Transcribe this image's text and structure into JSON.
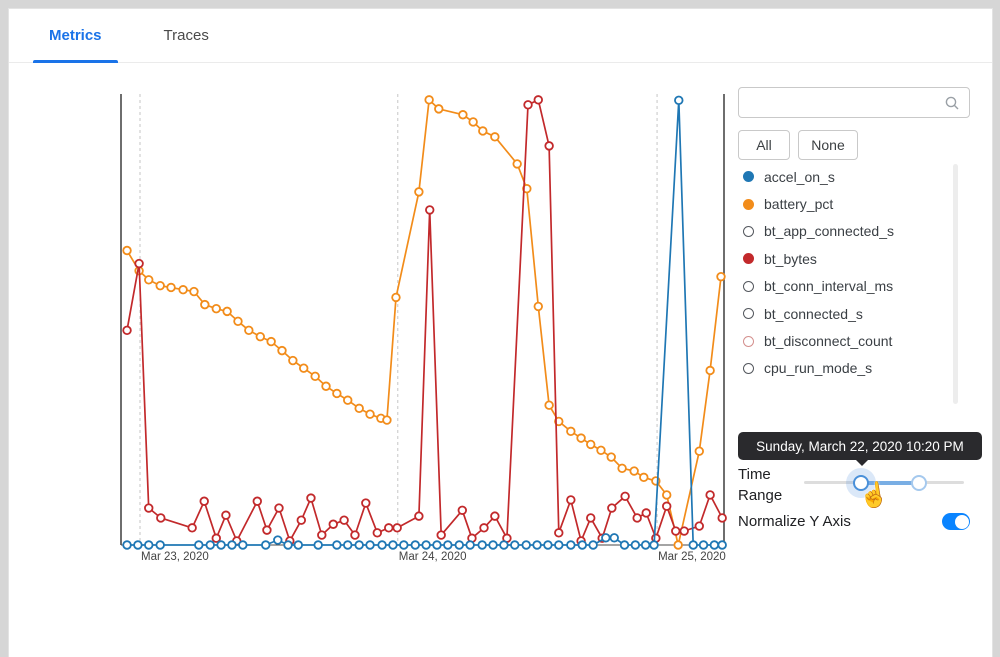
{
  "tabs": {
    "metrics": "Metrics",
    "traces": "Traces"
  },
  "panel": {
    "search": {
      "placeholder": "",
      "value": ""
    },
    "buttons": {
      "all": "All",
      "none": "None"
    },
    "legend": [
      {
        "label": "accel_on_s",
        "color": "#1f77b4",
        "filled": true
      },
      {
        "label": "battery_pct",
        "color": "#f28c1a",
        "filled": true
      },
      {
        "label": "bt_app_connected_s",
        "color": "#54585e",
        "filled": false
      },
      {
        "label": "bt_bytes",
        "color": "#c2292b",
        "filled": true
      },
      {
        "label": "bt_conn_interval_ms",
        "color": "#54585e",
        "filled": false
      },
      {
        "label": "bt_connected_s",
        "color": "#54585e",
        "filled": false
      },
      {
        "label": "bt_disconnect_count",
        "color": "#d4908e",
        "filled": false
      },
      {
        "label": "cpu_run_mode_s",
        "color": "#54585e",
        "filled": false
      }
    ],
    "tooltip_text": "Sunday, March 22, 2020 10:20 PM",
    "time_range_label": "Time Range",
    "normalize_label": "Normalize Y Axis",
    "normalize_on": true,
    "slider": {
      "start_pct": 35.6,
      "end_pct": 71.9
    }
  },
  "chart_data": {
    "type": "line",
    "title": "",
    "xlabel": "",
    "ylabel": "",
    "y_axis": {
      "normalized": true,
      "range": [
        0,
        100
      ],
      "ticks_visible": false
    },
    "x_axis": {
      "tick_labels": [
        "Mar 23, 2020",
        "Mar 24, 2020",
        "Mar 25, 2020"
      ],
      "gridline_x_pct": [
        3.15,
        45.9,
        88.9
      ]
    },
    "legend_position": "right-panel",
    "series": [
      {
        "name": "battery_pct",
        "color": "#f28c1a",
        "points": [
          [
            1.0,
            65.3
          ],
          [
            3.0,
            60.8
          ],
          [
            4.6,
            58.8
          ],
          [
            6.5,
            57.5
          ],
          [
            8.3,
            57.1
          ],
          [
            10.3,
            56.6
          ],
          [
            12.1,
            56.2
          ],
          [
            13.9,
            53.3
          ],
          [
            15.8,
            52.4
          ],
          [
            17.6,
            51.8
          ],
          [
            19.4,
            49.6
          ],
          [
            21.2,
            47.6
          ],
          [
            23.1,
            46.2
          ],
          [
            24.9,
            45.1
          ],
          [
            26.7,
            43.1
          ],
          [
            28.5,
            40.9
          ],
          [
            30.3,
            39.2
          ],
          [
            32.2,
            37.4
          ],
          [
            34.0,
            35.2
          ],
          [
            35.8,
            33.6
          ],
          [
            37.6,
            32.1
          ],
          [
            39.5,
            30.3
          ],
          [
            41.3,
            29.0
          ],
          [
            43.1,
            28.1
          ],
          [
            44.1,
            27.7
          ],
          [
            45.6,
            54.9
          ],
          [
            49.4,
            78.3
          ],
          [
            51.1,
            98.7
          ],
          [
            52.7,
            96.7
          ],
          [
            56.7,
            95.4
          ],
          [
            58.4,
            93.8
          ],
          [
            60.0,
            91.8
          ],
          [
            62.0,
            90.5
          ],
          [
            65.7,
            84.5
          ],
          [
            67.3,
            79.0
          ],
          [
            69.2,
            52.9
          ],
          [
            71.0,
            31.0
          ],
          [
            72.6,
            27.4
          ],
          [
            74.6,
            25.2
          ],
          [
            76.3,
            23.7
          ],
          [
            77.9,
            22.3
          ],
          [
            79.6,
            21.0
          ],
          [
            81.3,
            19.5
          ],
          [
            83.1,
            17.0
          ],
          [
            85.1,
            16.4
          ],
          [
            86.7,
            15.0
          ],
          [
            88.7,
            14.2
          ],
          [
            90.5,
            11.1
          ],
          [
            92.4,
            0
          ],
          [
            95.9,
            20.8
          ],
          [
            97.7,
            38.7
          ],
          [
            99.5,
            59.5
          ]
        ]
      },
      {
        "name": "bt_bytes",
        "color": "#c2292b",
        "points": [
          [
            1.0,
            47.6
          ],
          [
            3.0,
            62.4
          ],
          [
            4.6,
            8.2
          ],
          [
            6.6,
            6.0
          ],
          [
            11.8,
            3.8
          ],
          [
            13.8,
            9.7
          ],
          [
            15.8,
            1.5
          ],
          [
            17.4,
            6.6
          ],
          [
            19.2,
            0.9
          ],
          [
            22.6,
            9.7
          ],
          [
            24.2,
            3.3
          ],
          [
            26.2,
            8.2
          ],
          [
            28.0,
            0.9
          ],
          [
            29.9,
            5.5
          ],
          [
            31.5,
            10.4
          ],
          [
            33.3,
            2.2
          ],
          [
            35.2,
            4.6
          ],
          [
            37.0,
            5.5
          ],
          [
            38.8,
            2.2
          ],
          [
            40.6,
            9.3
          ],
          [
            42.5,
            2.7
          ],
          [
            44.4,
            3.8
          ],
          [
            45.8,
            3.8
          ],
          [
            49.4,
            6.4
          ],
          [
            51.2,
            74.3
          ],
          [
            53.1,
            2.2
          ],
          [
            56.6,
            7.7
          ],
          [
            58.2,
            1.5
          ],
          [
            60.2,
            3.8
          ],
          [
            62.0,
            6.4
          ],
          [
            64.0,
            1.5
          ],
          [
            67.5,
            97.6
          ],
          [
            69.2,
            98.7
          ],
          [
            71.0,
            88.5
          ],
          [
            72.6,
            2.7
          ],
          [
            74.6,
            10.0
          ],
          [
            76.3,
            0.9
          ],
          [
            77.9,
            6.0
          ],
          [
            79.8,
            1.5
          ],
          [
            81.4,
            8.2
          ],
          [
            83.6,
            10.8
          ],
          [
            85.6,
            6.0
          ],
          [
            87.1,
            7.1
          ],
          [
            88.7,
            1.5
          ],
          [
            90.5,
            8.6
          ],
          [
            92.0,
            3.1
          ],
          [
            93.4,
            3.1
          ],
          [
            95.9,
            4.2
          ],
          [
            97.7,
            11.1
          ],
          [
            99.7,
            6.0
          ]
        ]
      },
      {
        "name": "accel_on_s",
        "color": "#1f77b4",
        "points": [
          [
            1.0,
            0
          ],
          [
            2.8,
            0
          ],
          [
            4.6,
            0
          ],
          [
            6.5,
            0
          ],
          [
            12.9,
            0
          ],
          [
            14.8,
            0
          ],
          [
            16.6,
            0
          ],
          [
            18.4,
            0
          ],
          [
            20.2,
            0
          ],
          [
            24.0,
            0
          ],
          [
            26.0,
            1.1
          ],
          [
            27.7,
            0
          ],
          [
            29.4,
            0
          ],
          [
            32.7,
            0
          ],
          [
            35.8,
            0
          ],
          [
            37.6,
            0
          ],
          [
            39.5,
            0
          ],
          [
            41.3,
            0
          ],
          [
            43.3,
            0
          ],
          [
            45.1,
            0
          ],
          [
            46.9,
            0
          ],
          [
            48.8,
            0
          ],
          [
            50.6,
            0
          ],
          [
            52.4,
            0
          ],
          [
            54.2,
            0
          ],
          [
            56.1,
            0
          ],
          [
            57.9,
            0
          ],
          [
            59.9,
            0
          ],
          [
            61.7,
            0
          ],
          [
            63.5,
            0
          ],
          [
            65.3,
            0
          ],
          [
            67.2,
            0
          ],
          [
            69.0,
            0
          ],
          [
            70.8,
            0
          ],
          [
            72.6,
            0
          ],
          [
            74.6,
            0
          ],
          [
            76.5,
            0
          ],
          [
            78.3,
            0
          ],
          [
            80.4,
            1.6
          ],
          [
            81.8,
            1.6
          ],
          [
            83.5,
            0
          ],
          [
            85.3,
            0
          ],
          [
            87.0,
            0
          ],
          [
            88.4,
            0
          ],
          [
            92.5,
            98.6
          ],
          [
            94.9,
            0
          ],
          [
            96.6,
            0
          ],
          [
            98.4,
            0
          ],
          [
            99.7,
            0
          ]
        ]
      }
    ]
  }
}
